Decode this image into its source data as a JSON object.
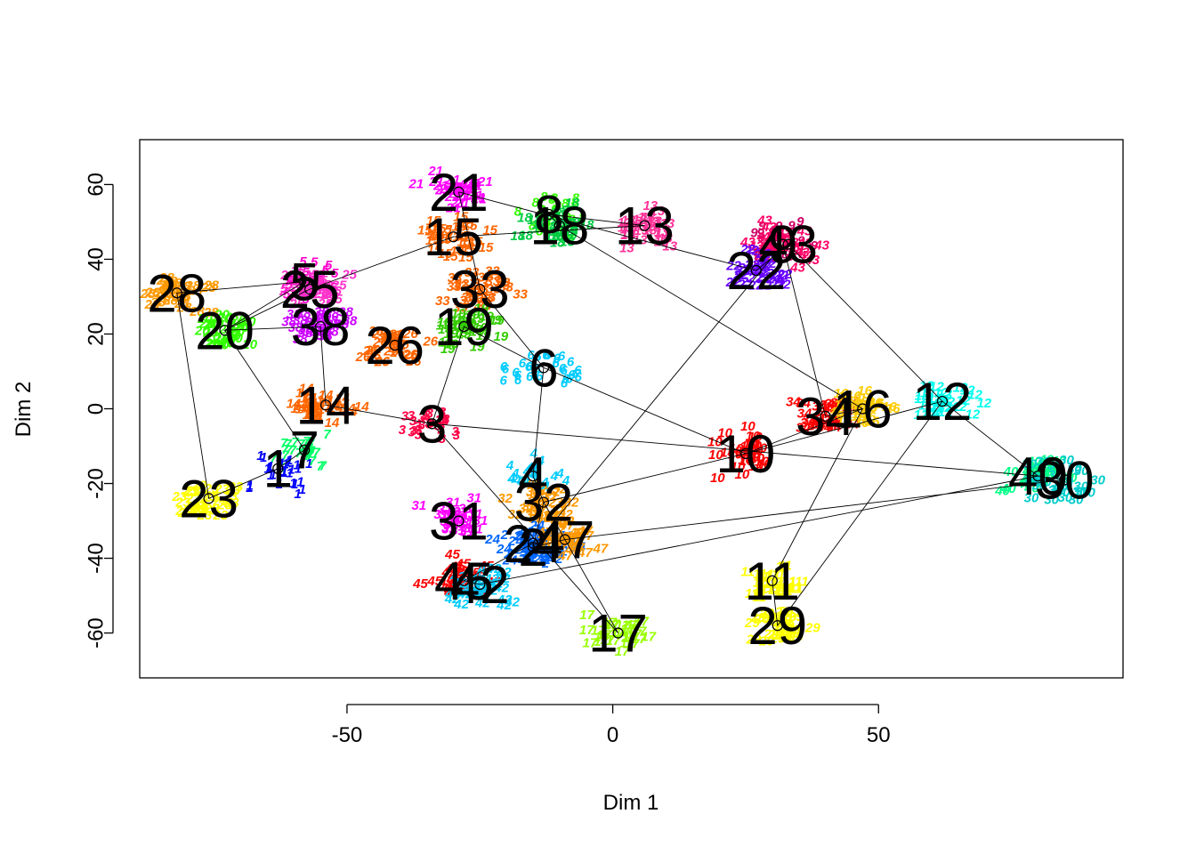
{
  "chart_data": {
    "type": "scatter",
    "title": "",
    "xlabel": "Dim 1",
    "ylabel": "Dim 2",
    "xlim": [
      -89,
      96
    ],
    "ylim": [
      -72,
      72
    ],
    "x_ticks": [
      -50,
      0,
      50
    ],
    "x_tick_labels": [
      "-50",
      "0",
      "50"
    ],
    "y_ticks": [
      -60,
      -40,
      -20,
      0,
      20,
      40,
      60
    ],
    "y_tick_labels": [
      "-60",
      "-40",
      "-20",
      "0",
      "20",
      "40",
      "60"
    ],
    "grid": false,
    "legend": "none",
    "clusters": [
      {
        "id": "21",
        "x": -29,
        "y": 58,
        "color": "#FF00FF"
      },
      {
        "id": "15",
        "x": -30,
        "y": 46,
        "color": "#FF6600"
      },
      {
        "id": "8",
        "x": -12,
        "y": 52,
        "color": "#33FF00"
      },
      {
        "id": "18",
        "x": -10,
        "y": 49,
        "color": "#00CC44"
      },
      {
        "id": "13",
        "x": 6,
        "y": 49,
        "color": "#FF3399"
      },
      {
        "id": "9",
        "x": 32,
        "y": 44,
        "color": "#CC0066"
      },
      {
        "id": "43",
        "x": 33,
        "y": 44,
        "color": "#FF0066"
      },
      {
        "id": "22",
        "x": 27,
        "y": 37,
        "color": "#6600FF"
      },
      {
        "id": "28",
        "x": -82,
        "y": 31,
        "color": "#FF9900"
      },
      {
        "id": "5",
        "x": -58,
        "y": 34,
        "color": "#FF00CC"
      },
      {
        "id": "25",
        "x": -57,
        "y": 32,
        "color": "#FF33CC"
      },
      {
        "id": "38",
        "x": -55,
        "y": 22,
        "color": "#CC00FF"
      },
      {
        "id": "33",
        "x": -25,
        "y": 32,
        "color": "#FF6600"
      },
      {
        "id": "20",
        "x": -73,
        "y": 21,
        "color": "#33FF00"
      },
      {
        "id": "19",
        "x": -28,
        "y": 22,
        "color": "#33CC00"
      },
      {
        "id": "26",
        "x": -41,
        "y": 17,
        "color": "#FF6600"
      },
      {
        "id": "6",
        "x": -13,
        "y": 11,
        "color": "#00CCFF"
      },
      {
        "id": "14",
        "x": -54,
        "y": 1,
        "color": "#FF6600"
      },
      {
        "id": "3",
        "x": -34,
        "y": -4,
        "color": "#FF0044"
      },
      {
        "id": "34",
        "x": 40,
        "y": -2,
        "color": "#FF0000"
      },
      {
        "id": "16",
        "x": 47,
        "y": 0,
        "color": "#FFCC00"
      },
      {
        "id": "12",
        "x": 62,
        "y": 2,
        "color": "#00FFEE"
      },
      {
        "id": "7",
        "x": -58,
        "y": -11,
        "color": "#00FF66"
      },
      {
        "id": "1",
        "x": -63,
        "y": -16,
        "color": "#0000FF"
      },
      {
        "id": "10",
        "x": 25,
        "y": -12,
        "color": "#FF0000"
      },
      {
        "id": "4",
        "x": -15,
        "y": -18,
        "color": "#00CCFF"
      },
      {
        "id": "40",
        "x": 80,
        "y": -18,
        "color": "#00FF88"
      },
      {
        "id": "30",
        "x": 85,
        "y": -19,
        "color": "#00CCCC"
      },
      {
        "id": "23",
        "x": -76,
        "y": -24,
        "color": "#FFFF00"
      },
      {
        "id": "32",
        "x": -13,
        "y": -25,
        "color": "#FF9900"
      },
      {
        "id": "31",
        "x": -29,
        "y": -30,
        "color": "#FF00FF"
      },
      {
        "id": "2",
        "x": -15,
        "y": -37,
        "color": "#0066FF"
      },
      {
        "id": "24",
        "x": -15,
        "y": -36,
        "color": "#0066FF"
      },
      {
        "id": "47",
        "x": -9,
        "y": -35,
        "color": "#FF9900"
      },
      {
        "id": "45",
        "x": -28,
        "y": -46,
        "color": "#FF0000"
      },
      {
        "id": "42",
        "x": -25,
        "y": -47,
        "color": "#00CCFF"
      },
      {
        "id": "11",
        "x": 30,
        "y": -46,
        "color": "#FFFF00"
      },
      {
        "id": "29",
        "x": 31,
        "y": -58,
        "color": "#FFFF00"
      },
      {
        "id": "17",
        "x": 1,
        "y": -60,
        "color": "#99FF00"
      }
    ],
    "path": [
      "21",
      "22",
      "43",
      "12",
      "40",
      "30",
      "47",
      "2",
      "24",
      "45",
      "42",
      "40",
      "3",
      "19",
      "6",
      "4",
      "32",
      "17",
      "3",
      "14",
      "38",
      "20",
      "5",
      "28",
      "23",
      "1",
      "7",
      "20",
      "25",
      "15",
      "13",
      "8",
      "18",
      "16",
      "10",
      "32",
      "2",
      "9",
      "34",
      "16",
      "11",
      "29",
      "12",
      "10",
      "6",
      "33",
      "21"
    ]
  }
}
